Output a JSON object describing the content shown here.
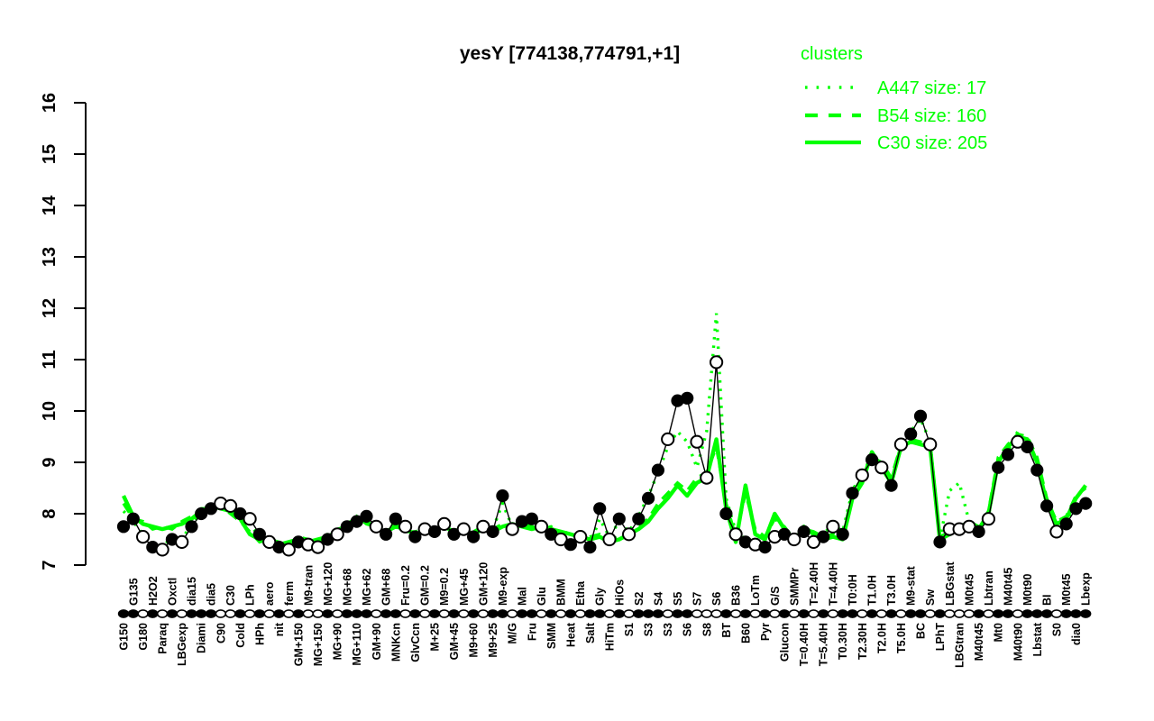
{
  "title": "yesY [774138,774791,+1]",
  "legend": {
    "title": "clusters",
    "entries": [
      {
        "label": "A447",
        "size": 17,
        "size_label": "A447 size: 17",
        "style": "dotted"
      },
      {
        "label": "B54",
        "size": 160,
        "size_label": "B54 size: 160",
        "style": "dashed"
      },
      {
        "label": "C30",
        "size": 205,
        "size_label": "C30 size: 205",
        "style": "solid"
      }
    ]
  },
  "colors": {
    "cluster_green": "#00ff00",
    "profile_black": "#000000",
    "background": "#ffffff",
    "open_marker_fill": "#ffffff"
  },
  "chart_data": {
    "type": "line",
    "title": "yesY [774138,774791,+1]",
    "xlabel": "",
    "ylabel": "",
    "ylim": [
      7,
      16
    ],
    "yticks": [
      7,
      8,
      9,
      10,
      11,
      12,
      13,
      14,
      15,
      16
    ],
    "grid": false,
    "legend_position": "top-right",
    "x_label_layout": "rotated 90deg, alternating below/above marker strip (even=below, odd=above)",
    "categories": [
      "G150",
      "G135",
      "G180",
      "H2O2",
      "Paraq",
      "Oxctl",
      "LBGexp",
      "dia15",
      "Diami",
      "dia5",
      "C90",
      "C30",
      "Cold",
      "LPh",
      "HPh",
      "aero",
      "nit",
      "ferm",
      "GM+150",
      "M9-tran",
      "MG+150",
      "MG+120",
      "MG+90",
      "MG+68",
      "MG+110",
      "MG+62",
      "GM+90",
      "GM+68",
      "MNKcn",
      "Fru=0.2",
      "GlvCcn",
      "GM=0.2",
      "M+25",
      "M9=0.2",
      "GM+45",
      "MG+45",
      "M9+60",
      "GM+120",
      "M9+25",
      "M9-exp",
      "M/G",
      "Mal",
      "Fru",
      "Glu",
      "SMM",
      "BMM",
      "Heat",
      "Etha",
      "Salt",
      "Gly",
      "HiTm",
      "HiOs",
      "S1",
      "S2",
      "S3",
      "S4",
      "S3",
      "S5",
      "S6",
      "S7",
      "S8",
      "S6",
      "BT",
      "B36",
      "B60",
      "LoTm",
      "Pyr",
      "G/S",
      "Glucon",
      "SMMPr",
      "T=0.40H",
      "T=2.40H",
      "T=5.40H",
      "T=4.40H",
      "T0.30H",
      "T0:0H",
      "T2.30H",
      "T1.0H",
      "T2.0H",
      "T3.0H",
      "T5.0H",
      "M9-stat",
      "BC",
      "Sw",
      "LPhT",
      "LBGstat",
      "LBGtran",
      "M0t45",
      "M40t45",
      "Lbtran",
      "Mt0",
      "M40t45",
      "M40t90",
      "M0t90",
      "Lbstat",
      "BI",
      "S0",
      "M0t45",
      "dia0",
      "Lbexp"
    ],
    "series": [
      {
        "name": "yesY profile",
        "role": "gene-profile",
        "color": "#000000",
        "marker": "circle",
        "values": [
          7.75,
          7.9,
          7.55,
          7.35,
          7.3,
          7.5,
          7.45,
          7.75,
          8.0,
          8.1,
          8.2,
          8.15,
          8.0,
          7.9,
          7.6,
          7.45,
          7.35,
          7.3,
          7.45,
          7.4,
          7.35,
          7.5,
          7.6,
          7.75,
          7.85,
          7.95,
          7.75,
          7.6,
          7.9,
          7.75,
          7.55,
          7.7,
          7.65,
          7.8,
          7.6,
          7.7,
          7.55,
          7.75,
          7.65,
          8.35,
          7.7,
          7.85,
          7.9,
          7.75,
          7.6,
          7.5,
          7.4,
          7.55,
          7.35,
          8.1,
          7.5,
          7.9,
          7.6,
          7.9,
          8.3,
          8.85,
          9.45,
          10.2,
          10.25,
          9.4,
          8.7,
          10.95,
          8.0,
          7.6,
          7.45,
          7.4,
          7.35,
          7.55,
          7.6,
          7.5,
          7.65,
          7.45,
          7.55,
          7.75,
          7.6,
          8.4,
          8.75,
          9.05,
          8.9,
          8.55,
          9.35,
          9.55,
          9.9,
          9.35,
          7.45,
          7.7,
          7.7,
          7.75,
          7.65,
          7.9,
          8.9,
          9.15,
          9.4,
          9.3,
          8.85,
          8.15,
          7.65,
          7.8,
          8.1,
          8.2
        ],
        "marker_filled": [
          1,
          1,
          0,
          1,
          0,
          1,
          0,
          1,
          1,
          1,
          0,
          0,
          1,
          0,
          1,
          0,
          1,
          0,
          1,
          0,
          0,
          1,
          0,
          1,
          1,
          1,
          0,
          1,
          1,
          0,
          1,
          0,
          1,
          0,
          1,
          0,
          1,
          0,
          1,
          1,
          0,
          1,
          1,
          0,
          1,
          0,
          1,
          0,
          1,
          1,
          0,
          1,
          0,
          1,
          1,
          1,
          0,
          1,
          1,
          0,
          0,
          0,
          1,
          0,
          1,
          0,
          1,
          0,
          1,
          0,
          1,
          0,
          1,
          0,
          1,
          1,
          0,
          1,
          0,
          1,
          0,
          1,
          1,
          0,
          1,
          0,
          0,
          0,
          1,
          0,
          1,
          1,
          0,
          1,
          1,
          1,
          0,
          1,
          1,
          1
        ]
      },
      {
        "name": "A447",
        "size": 17,
        "style": "dotted",
        "color": "#00ff00",
        "values": [
          8.05,
          7.85,
          7.6,
          7.45,
          7.35,
          7.55,
          7.5,
          7.8,
          8.0,
          8.15,
          8.25,
          8.1,
          7.95,
          7.8,
          7.55,
          7.5,
          7.4,
          7.35,
          7.5,
          7.45,
          7.4,
          7.55,
          7.65,
          7.8,
          7.9,
          7.9,
          7.8,
          7.65,
          7.85,
          7.7,
          7.6,
          7.75,
          7.7,
          7.85,
          7.65,
          7.75,
          7.6,
          7.8,
          7.7,
          8.2,
          7.75,
          7.9,
          7.85,
          7.8,
          7.65,
          7.55,
          7.45,
          7.6,
          7.4,
          7.9,
          7.55,
          7.85,
          7.65,
          7.95,
          8.35,
          8.8,
          9.3,
          9.6,
          9.4,
          8.9,
          9.6,
          11.9,
          8.3,
          7.65,
          7.5,
          7.45,
          7.4,
          7.6,
          7.65,
          7.55,
          7.7,
          7.5,
          7.6,
          7.8,
          7.65,
          8.45,
          8.8,
          9.1,
          8.95,
          8.6,
          9.4,
          9.6,
          9.85,
          9.4,
          7.5,
          8.45,
          8.6,
          7.85,
          7.7,
          7.95,
          9.0,
          9.2,
          9.6,
          9.35,
          8.9,
          8.2,
          7.7,
          7.85,
          8.15,
          8.25
        ]
      },
      {
        "name": "B54",
        "size": 160,
        "style": "dashed",
        "color": "#00ff00",
        "values": [
          8.2,
          7.9,
          7.85,
          7.7,
          7.75,
          7.7,
          7.85,
          7.95,
          8.1,
          8.1,
          8.15,
          8.0,
          7.85,
          7.65,
          7.45,
          7.5,
          7.45,
          7.4,
          7.55,
          7.5,
          7.45,
          7.6,
          7.7,
          7.75,
          7.95,
          7.8,
          7.75,
          7.6,
          7.8,
          7.65,
          7.65,
          7.7,
          7.65,
          7.8,
          7.7,
          7.65,
          7.65,
          7.75,
          7.7,
          7.8,
          7.75,
          7.8,
          7.75,
          7.7,
          7.75,
          7.6,
          7.65,
          7.5,
          7.55,
          7.6,
          7.5,
          7.55,
          7.65,
          7.75,
          7.9,
          8.2,
          8.4,
          8.6,
          8.45,
          8.7,
          8.8,
          9.3,
          8.2,
          7.55,
          8.4,
          7.7,
          7.55,
          7.9,
          7.75,
          7.5,
          7.7,
          7.65,
          7.55,
          7.6,
          7.55,
          8.4,
          8.7,
          9.1,
          9.0,
          8.7,
          9.35,
          9.45,
          9.4,
          9.25,
          7.55,
          7.65,
          7.75,
          7.85,
          7.75,
          8.05,
          9.1,
          9.35,
          9.55,
          9.5,
          9.1,
          8.3,
          7.85,
          7.95,
          8.35,
          8.5
        ]
      },
      {
        "name": "C30",
        "size": 205,
        "style": "solid",
        "color": "#00ff00",
        "values": [
          8.35,
          7.95,
          7.8,
          7.75,
          7.7,
          7.75,
          7.8,
          7.9,
          8.05,
          8.15,
          8.1,
          8.05,
          7.9,
          7.6,
          7.5,
          7.45,
          7.4,
          7.45,
          7.5,
          7.45,
          7.5,
          7.55,
          7.65,
          7.8,
          7.9,
          7.85,
          7.7,
          7.65,
          7.75,
          7.7,
          7.6,
          7.65,
          7.7,
          7.75,
          7.65,
          7.7,
          7.6,
          7.7,
          7.65,
          7.75,
          7.8,
          7.75,
          7.7,
          7.75,
          7.7,
          7.65,
          7.6,
          7.55,
          7.5,
          7.55,
          7.45,
          7.5,
          7.6,
          7.7,
          7.85,
          8.1,
          8.3,
          8.55,
          8.35,
          8.6,
          8.7,
          9.45,
          8.1,
          7.45,
          8.55,
          7.6,
          7.5,
          8.0,
          7.7,
          7.45,
          7.75,
          7.6,
          7.5,
          7.55,
          7.5,
          8.3,
          8.6,
          9.2,
          8.9,
          8.6,
          9.3,
          9.4,
          9.35,
          9.3,
          7.5,
          7.6,
          7.7,
          7.8,
          7.7,
          8.0,
          9.0,
          9.3,
          9.5,
          9.45,
          9.0,
          8.2,
          7.8,
          7.9,
          8.3,
          8.55
        ]
      }
    ]
  }
}
